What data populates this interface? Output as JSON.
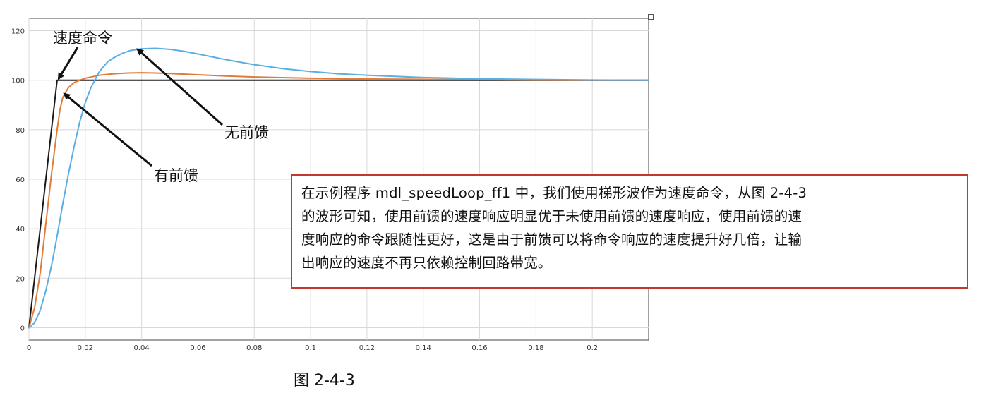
{
  "chart_data": {
    "type": "line",
    "xlim": [
      0,
      0.22
    ],
    "ylim": [
      -5,
      125
    ],
    "x_ticks": [
      0,
      0.02,
      0.04,
      0.06,
      0.08,
      0.1,
      0.12,
      0.14,
      0.16,
      0.18,
      0.2
    ],
    "x_tick_labels": [
      "0",
      "0.02",
      "0.04",
      "0.06",
      "0.08",
      "0.1",
      "0.12",
      "0.14",
      "0.16",
      "0.18",
      "0.2"
    ],
    "y_ticks": [
      0,
      20,
      40,
      60,
      80,
      100,
      120
    ],
    "y_tick_labels": [
      "0",
      "20",
      "40",
      "60",
      "80",
      "100",
      "120"
    ],
    "grid": true,
    "series": [
      {
        "name": "速度命令",
        "color": "#1a1a1a",
        "x": [
          0,
          0.01,
          0.22
        ],
        "y": [
          0,
          100,
          100
        ]
      },
      {
        "name": "有前馈",
        "color": "#e07b39",
        "x": [
          0,
          0.002,
          0.004,
          0.006,
          0.008,
          0.01,
          0.011,
          0.012,
          0.014,
          0.016,
          0.018,
          0.02,
          0.025,
          0.03,
          0.035,
          0.04,
          0.045,
          0.05,
          0.06,
          0.07,
          0.08,
          0.1,
          0.12,
          0.15,
          0.18,
          0.22
        ],
        "y": [
          0,
          8,
          22,
          42,
          62,
          80,
          88,
          93,
          97,
          99,
          100,
          100.8,
          102,
          102.6,
          102.9,
          103,
          102.9,
          102.7,
          102.2,
          101.7,
          101.3,
          100.8,
          100.5,
          100.3,
          100.1,
          100
        ]
      },
      {
        "name": "无前馈",
        "color": "#5aaee3",
        "x": [
          0,
          0.002,
          0.004,
          0.006,
          0.008,
          0.01,
          0.012,
          0.014,
          0.016,
          0.018,
          0.02,
          0.022,
          0.025,
          0.028,
          0.03,
          0.033,
          0.036,
          0.04,
          0.045,
          0.05,
          0.055,
          0.06,
          0.07,
          0.08,
          0.09,
          0.1,
          0.11,
          0.12,
          0.14,
          0.16,
          0.18,
          0.2,
          0.22
        ],
        "y": [
          0,
          2,
          7,
          15,
          25,
          37,
          50,
          62,
          73,
          83,
          91,
          97,
          103.5,
          107.5,
          109,
          110.8,
          112,
          112.7,
          112.9,
          112.5,
          111.7,
          110.6,
          108.3,
          106.3,
          104.7,
          103.5,
          102.6,
          102,
          101.1,
          100.6,
          100.3,
          100.1,
          100
        ]
      }
    ],
    "annotations": [
      {
        "text": "速度命令",
        "target": [
          0.01,
          100
        ]
      },
      {
        "text": "有前馈",
        "target": [
          0.012,
          94
        ]
      },
      {
        "text": "无前馈",
        "target": [
          0.038,
          112
        ]
      }
    ]
  },
  "note": {
    "lines": [
      "在示例程序 mdl_speedLoop_ff1 中，我们使用梯形波作为速度命令，从图 2-4-3",
      "的波形可知，使用前馈的速度响应明显优于未使用前馈的速度响应，使用前馈的速",
      "度响应的命令跟随性更好，这是由于前馈可以将命令响应的速度提升好几倍，让输",
      "出响应的速度不再只依赖控制回路带宽。"
    ],
    "border_color": "#c0392b"
  },
  "caption": "图 2-4-3"
}
